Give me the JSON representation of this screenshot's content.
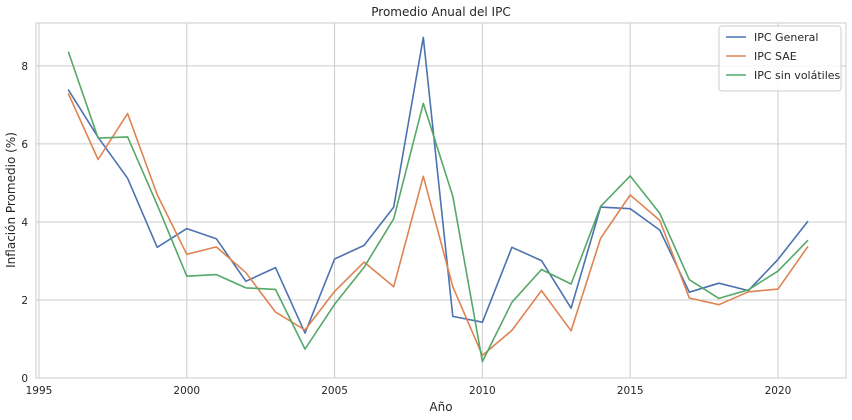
{
  "chart_data": {
    "type": "line",
    "title": "Promedio Anual del IPC",
    "xlabel": "Año",
    "ylabel": "Inflación Promedio (%)",
    "xlim": [
      1994.9,
      2022.3
    ],
    "ylim": [
      0,
      9.1
    ],
    "xticks": [
      1995,
      2000,
      2005,
      2010,
      2015,
      2020
    ],
    "yticks": [
      0,
      2,
      4,
      6,
      8
    ],
    "grid": true,
    "legend_position": "top-right",
    "x": [
      1996,
      1997,
      1998,
      1999,
      2000,
      2001,
      2002,
      2003,
      2004,
      2005,
      2006,
      2007,
      2008,
      2009,
      2010,
      2011,
      2012,
      2013,
      2014,
      2015,
      2016,
      2017,
      2018,
      2019,
      2020,
      2021
    ],
    "series": [
      {
        "name": "IPC General",
        "color": "#4c72b0",
        "values": [
          7.38,
          6.17,
          5.12,
          3.35,
          3.83,
          3.57,
          2.48,
          2.83,
          1.15,
          3.05,
          3.4,
          4.38,
          8.73,
          1.58,
          1.43,
          3.35,
          3.01,
          1.79,
          4.38,
          4.34,
          3.79,
          2.2,
          2.43,
          2.24,
          3.04,
          4.01
        ]
      },
      {
        "name": "IPC SAE",
        "color": "#dd8452",
        "values": [
          7.28,
          5.6,
          6.78,
          4.7,
          3.17,
          3.36,
          2.7,
          1.69,
          1.23,
          2.22,
          2.97,
          2.34,
          5.17,
          2.34,
          0.58,
          1.22,
          2.24,
          1.21,
          3.58,
          4.69,
          4.04,
          2.05,
          1.88,
          2.21,
          2.28,
          3.36
        ]
      },
      {
        "name": "IPC sin volátiles",
        "color": "#55a868",
        "values": [
          8.35,
          6.15,
          6.18,
          4.44,
          2.61,
          2.65,
          2.31,
          2.27,
          0.74,
          1.89,
          2.84,
          4.08,
          7.04,
          4.66,
          0.42,
          1.94,
          2.78,
          2.41,
          4.4,
          5.18,
          4.22,
          2.52,
          2.04,
          2.26,
          2.74,
          3.52
        ]
      }
    ]
  }
}
